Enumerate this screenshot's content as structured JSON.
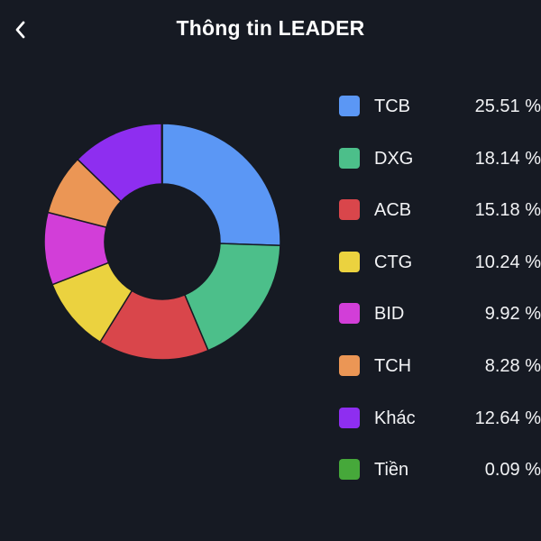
{
  "header": {
    "title": "Thông tin LEADER",
    "back_icon": "chevron-left-icon"
  },
  "background_color": "#161a23",
  "chart_data": {
    "type": "pie",
    "style": "donut",
    "categories": [
      "TCB",
      "DXG",
      "ACB",
      "CTG",
      "BID",
      "TCH",
      "Khác",
      "Tiền"
    ],
    "values": [
      25.51,
      18.14,
      15.18,
      10.24,
      9.92,
      8.28,
      12.64,
      0.09
    ],
    "value_labels": [
      "25.51 %",
      "18.14 %",
      "15.18 %",
      "10.24 %",
      "9.92 %",
      "8.28 %",
      "12.64 %",
      "0.09 %"
    ],
    "colors": [
      "#5b97f5",
      "#4cbf8a",
      "#d9464b",
      "#ebd23f",
      "#d23ed8",
      "#eb9655",
      "#8e2ef0",
      "#46a83a"
    ],
    "unit": "%",
    "legend_position": "right"
  }
}
